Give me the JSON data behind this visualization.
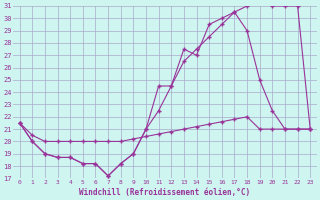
{
  "xlabel": "Windchill (Refroidissement éolien,°C)",
  "background_color": "#cef5f0",
  "grid_color": "#aaaacc",
  "line_color": "#993399",
  "xlim": [
    -0.5,
    23.5
  ],
  "ylim": [
    17,
    31
  ],
  "yticks": [
    17,
    18,
    19,
    20,
    21,
    22,
    23,
    24,
    25,
    26,
    27,
    28,
    29,
    30,
    31
  ],
  "xticks": [
    0,
    1,
    2,
    3,
    4,
    5,
    6,
    7,
    8,
    9,
    10,
    11,
    12,
    13,
    14,
    15,
    16,
    17,
    18,
    19,
    20,
    21,
    22,
    23
  ],
  "line1_x": [
    0,
    1,
    2,
    3,
    4,
    5,
    6,
    7,
    8,
    9,
    10,
    11,
    12,
    13,
    14,
    15,
    16,
    17,
    18,
    19,
    20,
    21,
    22,
    23
  ],
  "line1_y": [
    21.5,
    20.0,
    19.0,
    18.7,
    18.7,
    18.2,
    18.2,
    17.2,
    18.2,
    19.0,
    21.0,
    24.5,
    24.5,
    27.5,
    27.0,
    29.5,
    30.0,
    30.5,
    31.0,
    31.5,
    31.0,
    31.0,
    31.0,
    21.0
  ],
  "line2_x": [
    0,
    1,
    2,
    3,
    4,
    5,
    6,
    7,
    8,
    9,
    10,
    11,
    12,
    13,
    14,
    15,
    16,
    17,
    18,
    19,
    20,
    21,
    22,
    23
  ],
  "line2_y": [
    21.5,
    20.0,
    19.0,
    18.7,
    18.7,
    18.2,
    18.2,
    17.2,
    18.2,
    19.0,
    21.0,
    22.5,
    24.5,
    26.5,
    27.5,
    28.5,
    29.5,
    30.5,
    29.0,
    25.0,
    22.5,
    21.0,
    21.0,
    21.0
  ],
  "line3_x": [
    0,
    1,
    2,
    3,
    4,
    5,
    6,
    7,
    8,
    9,
    10,
    11,
    12,
    13,
    14,
    15,
    16,
    17,
    18,
    19,
    20,
    21,
    22,
    23
  ],
  "line3_y": [
    21.5,
    20.5,
    20.0,
    20.0,
    20.0,
    20.0,
    20.0,
    20.0,
    20.0,
    20.2,
    20.4,
    20.6,
    20.8,
    21.0,
    21.2,
    21.4,
    21.6,
    21.8,
    22.0,
    21.0,
    21.0,
    21.0,
    21.0,
    21.0
  ]
}
